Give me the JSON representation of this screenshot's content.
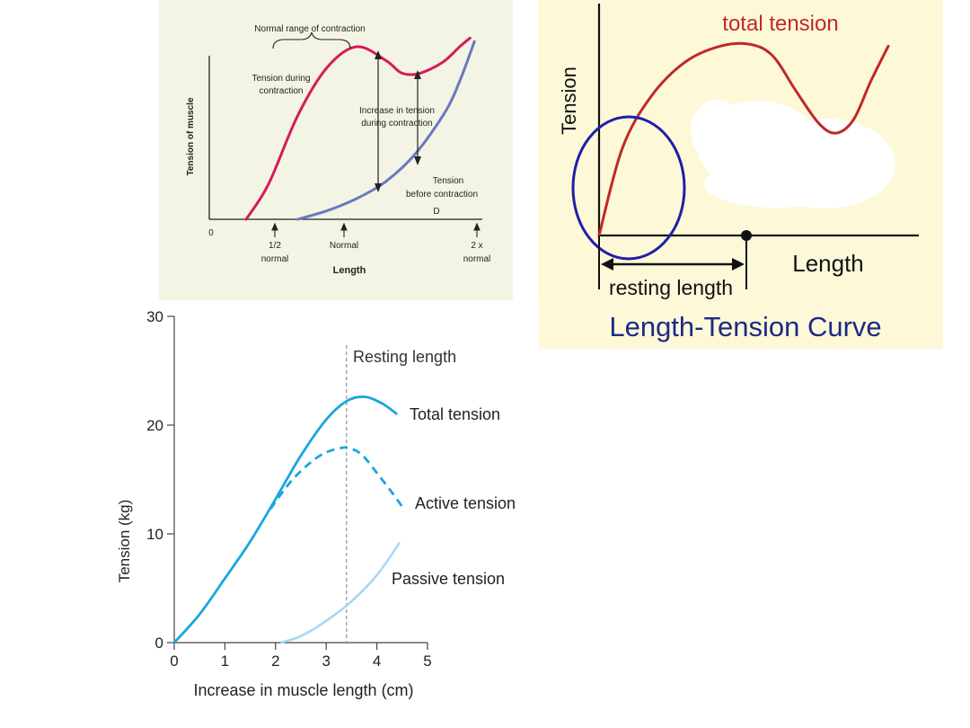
{
  "colors": {
    "panel_a_bg": "#f4f4e4",
    "panel_b_bg": "#fdf8d8",
    "contraction_curve": "#d51a5c",
    "passive_curve_a": "#6a78c2",
    "total_tension_b": "#c0282a",
    "circle_b": "#1f1fa8",
    "title_b": "#1c2a86",
    "total_c": "#1aa6de",
    "passive_c": "#a6d8f2",
    "resting_line": "#999999"
  },
  "chart_data": [
    {
      "type": "line",
      "xlabel": "Length",
      "ylabel": "Tension of muscle",
      "origin_label": "0",
      "x_ticks": [
        "1/2\nnormal",
        "Normal",
        "2 x\nnormal"
      ],
      "series": [
        {
          "x": [
            0.45,
            0.6,
            0.8,
            1.0,
            1.2,
            1.4,
            1.5,
            1.6,
            1.7,
            1.8,
            1.9,
            1.97
          ],
          "y": [
            0,
            0.2,
            0.6,
            0.88,
            1.0,
            0.92,
            0.85,
            0.84,
            0.87,
            0.92,
            1.0,
            1.05
          ]
        },
        {
          "x": [
            0.8,
            1.0,
            1.2,
            1.4,
            1.6,
            1.8,
            1.9,
            2.0
          ],
          "y": [
            0,
            0.05,
            0.12,
            0.22,
            0.38,
            0.62,
            0.8,
            1.03
          ]
        }
      ],
      "annotations": {
        "normal_range": "Normal range of contraction",
        "during": "Tension during\ncontraction",
        "increase": "Increase in tension\nduring contraction",
        "before": "Tension\nbefore contraction",
        "letter": "D"
      }
    },
    {
      "type": "line",
      "title": "Length-Tension Curve",
      "xlabel": "Length",
      "ylabel": "Tension",
      "series": [
        {
          "name": "total tension",
          "x": [
            0,
            0.08,
            0.18,
            0.3,
            0.42,
            0.52,
            0.6,
            0.68,
            0.76,
            0.82,
            0.88,
            0.94,
            1.0
          ],
          "y": [
            0,
            0.45,
            0.72,
            0.9,
            0.98,
            0.99,
            0.93,
            0.75,
            0.58,
            0.53,
            0.6,
            0.8,
            0.98
          ]
        }
      ],
      "annotations": {
        "bracket": "resting length"
      }
    },
    {
      "type": "line",
      "xlabel": "Increase in muscle length (cm)",
      "ylabel": "Tension (kg)",
      "xlim": [
        0,
        5
      ],
      "ylim": [
        0,
        30
      ],
      "x_ticks": [
        0,
        1,
        2,
        3,
        4,
        5
      ],
      "y_ticks": [
        0,
        10,
        20,
        30
      ],
      "resting_length_x": 3.4,
      "resting_length_label": "Resting length",
      "series": [
        {
          "name": "Total tension",
          "x": [
            0,
            0.5,
            1,
            1.5,
            2,
            2.5,
            3,
            3.4,
            3.75,
            4.1,
            4.4
          ],
          "y": [
            0,
            2.6,
            5.9,
            9.3,
            13.2,
            17.2,
            20.5,
            22.2,
            22.6,
            22.0,
            21.0
          ]
        },
        {
          "name": "Active tension",
          "x": [
            1.9,
            2.3,
            2.7,
            3.0,
            3.3,
            3.45,
            3.7,
            4.0,
            4.3,
            4.5
          ],
          "y": [
            12.3,
            14.8,
            16.6,
            17.5,
            17.9,
            17.9,
            17.3,
            15.6,
            13.8,
            12.5
          ]
        },
        {
          "name": "Passive tension",
          "x": [
            2.1,
            2.5,
            3.0,
            3.5,
            4.0,
            4.45
          ],
          "y": [
            0,
            0.6,
            2.0,
            3.8,
            6.2,
            9.2
          ]
        }
      ]
    }
  ]
}
